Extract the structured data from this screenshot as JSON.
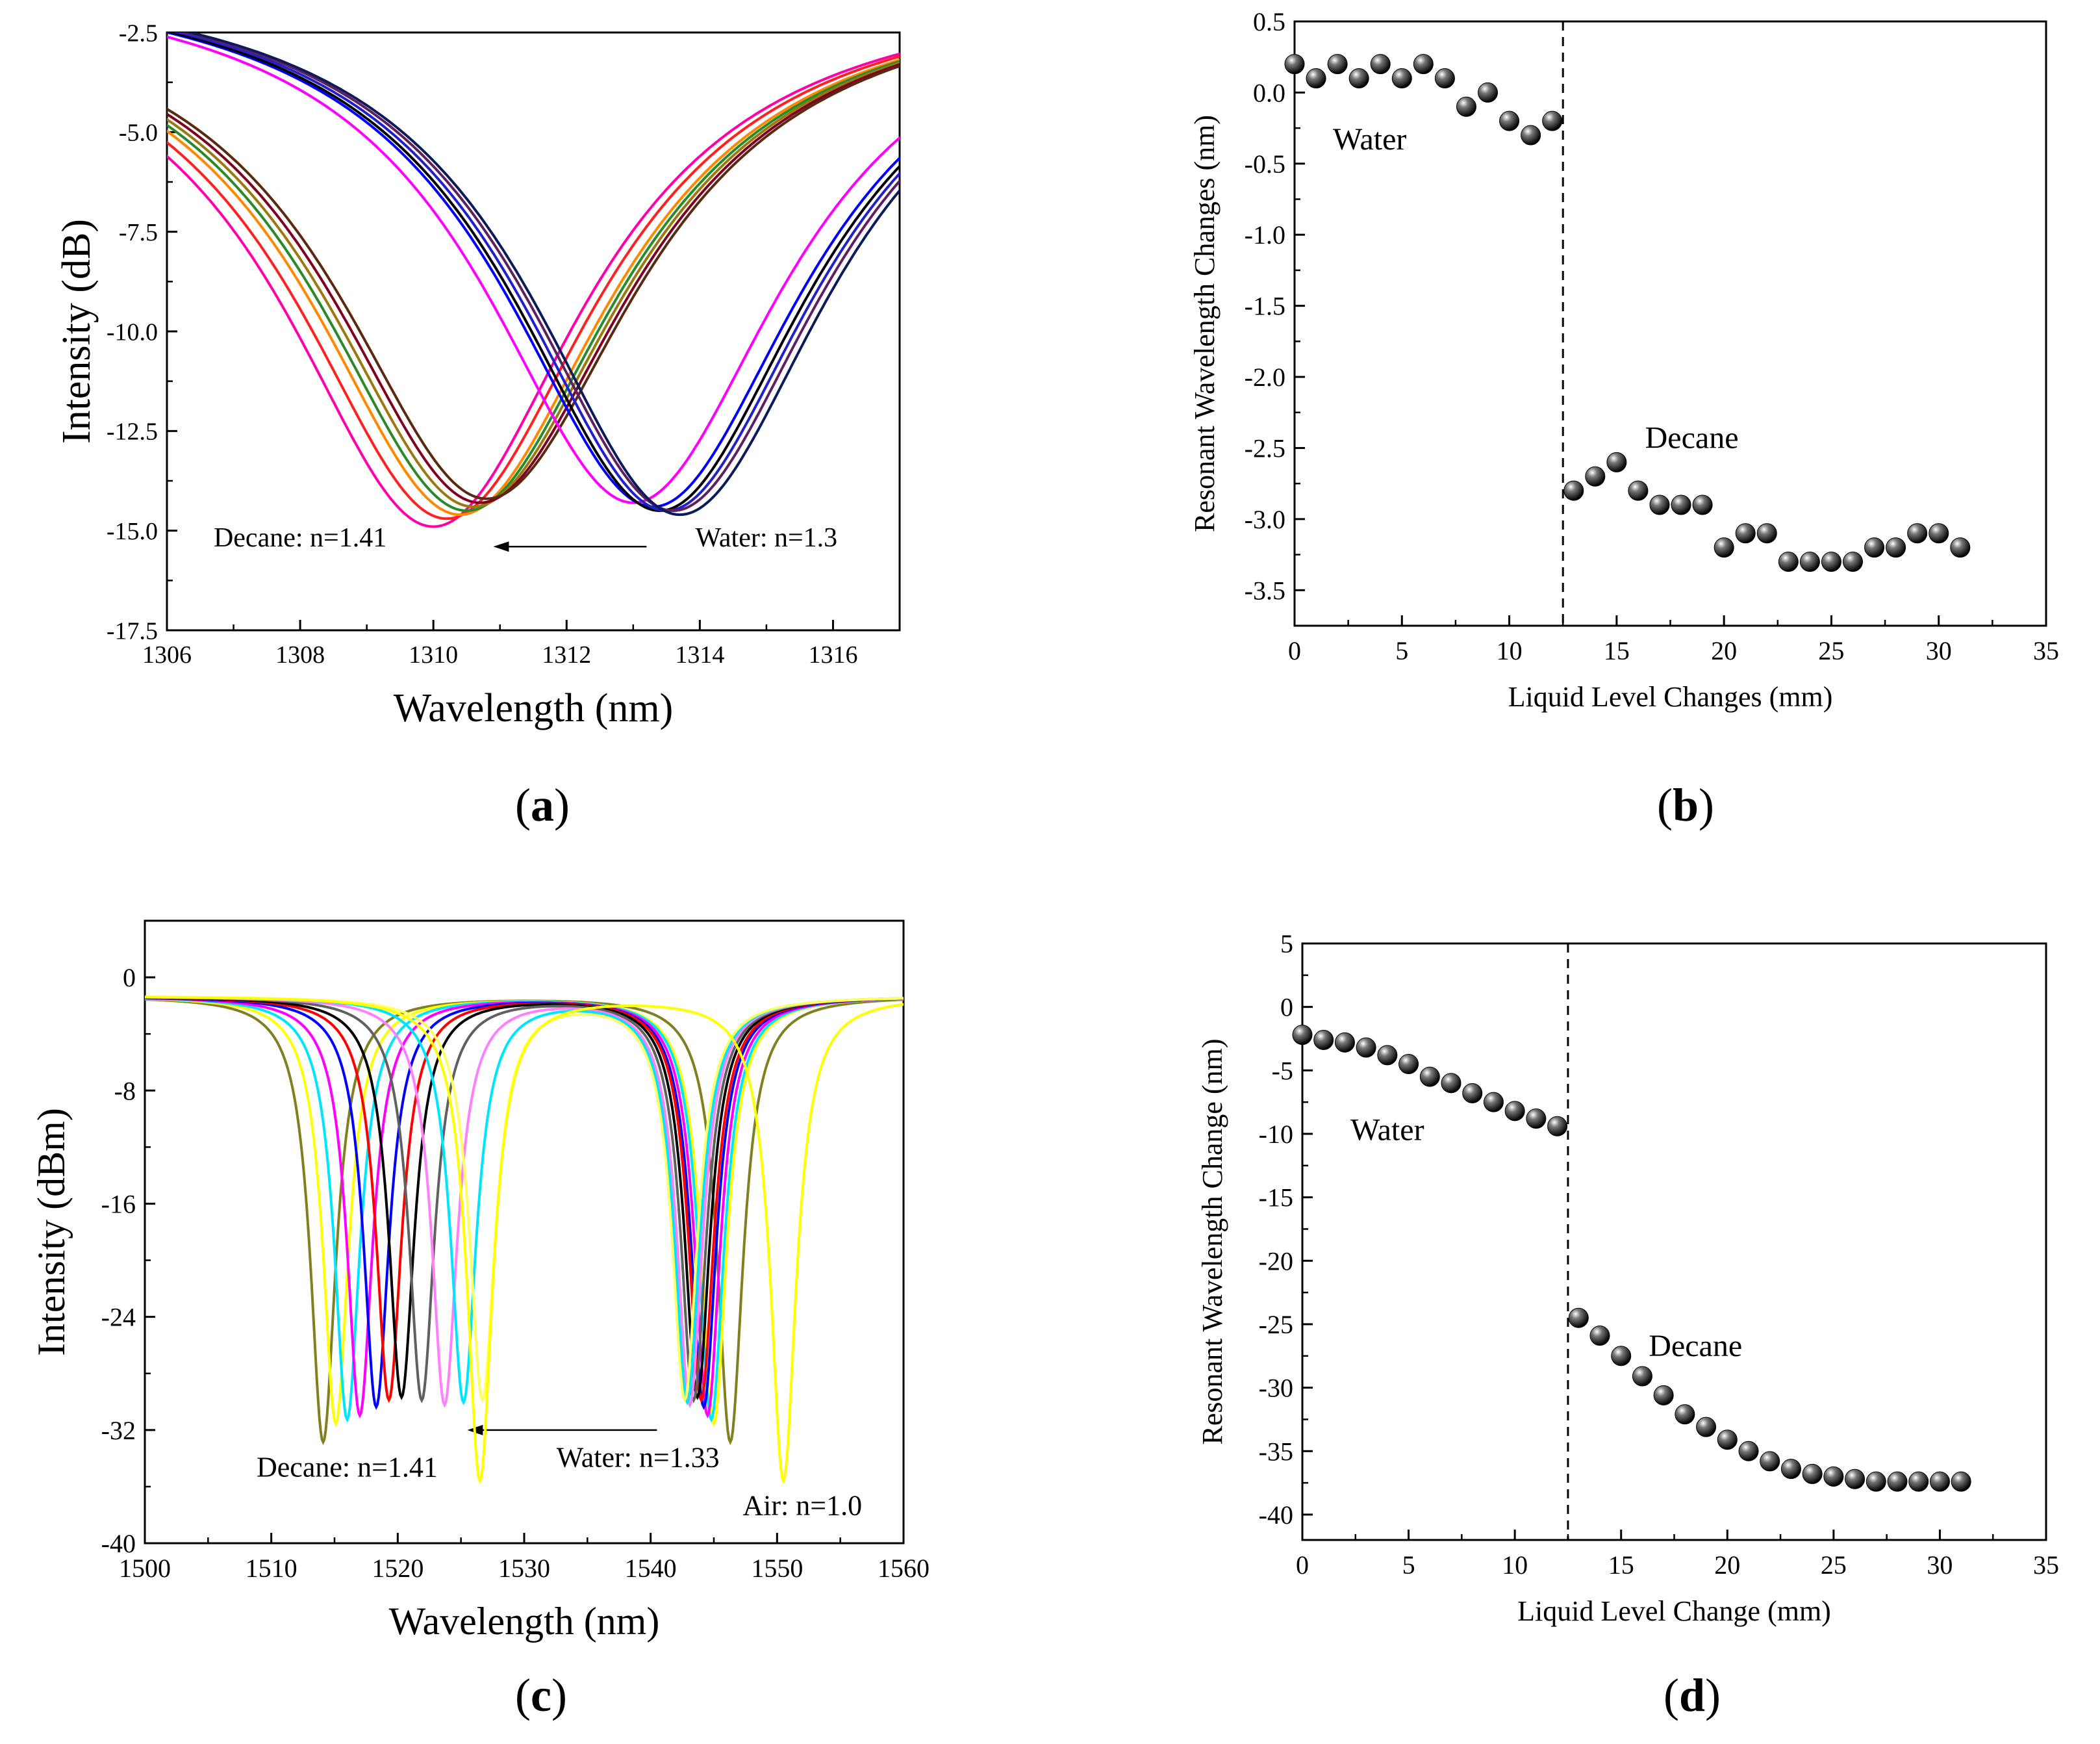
{
  "chart_data": [
    {
      "panel": "a",
      "type": "line",
      "xlabel": "Wavelength (nm)",
      "ylabel": "Intensity (dB)",
      "xlim": [
        1306,
        1317
      ],
      "ylim": [
        -17.5,
        -2.5
      ],
      "xticks": [
        1306,
        1308,
        1310,
        1312,
        1314,
        1316
      ],
      "yticks": [
        -2.5,
        -5.0,
        -7.5,
        -10.0,
        -12.5,
        -15.0,
        -17.5
      ],
      "annotations": [
        {
          "text": "Decane: n=1.41",
          "x": 1308.0,
          "y": -15.4
        },
        {
          "text": "Water: n=1.3",
          "x": 1315.0,
          "y": -15.4
        }
      ],
      "arrow": {
        "from": [
          1313.2,
          -15.4
        ],
        "to": [
          1310.9,
          -15.4
        ]
      },
      "curve_families": [
        {
          "group": "decane",
          "dip_center": [
            1310.0,
            1310.2,
            1310.4,
            1310.5,
            1310.6,
            1310.7,
            1310.8
          ],
          "dip_depth": [
            -14.9,
            -14.7,
            -14.6,
            -14.5,
            -14.4,
            -14.3,
            -14.2
          ],
          "left_start": -6.0,
          "right_end": -3.4,
          "colors": [
            "#ff00aa",
            "#ff2020",
            "#ff8800",
            "#2a8a2a",
            "#9a7a10",
            "#800020",
            "#5a2a10"
          ]
        },
        {
          "group": "water",
          "dip_center": [
            1313.0,
            1313.3,
            1313.4,
            1313.5,
            1313.6,
            1313.7
          ],
          "dip_depth": [
            -14.3,
            -14.4,
            -14.5,
            -14.5,
            -14.5,
            -14.6
          ],
          "left_start": -2.9,
          "right_end": -7.5,
          "colors": [
            "#ff00ff",
            "#0000ff",
            "#000000",
            "#2020cc",
            "#602060",
            "#0b1a5a"
          ]
        }
      ]
    },
    {
      "panel": "b",
      "type": "scatter",
      "xlabel": "Liquid Level Changes (mm)",
      "ylabel": "Resonant Wavelength Changes (nm)",
      "xlim": [
        0,
        35
      ],
      "ylim": [
        -3.75,
        0.5
      ],
      "xticks": [
        0,
        5,
        10,
        15,
        20,
        25,
        30,
        35
      ],
      "yticks": [
        0.5,
        0.0,
        -0.5,
        -1.0,
        -1.5,
        -2.0,
        -2.5,
        -3.0,
        -3.5
      ],
      "divider_x": 12.5,
      "annotations": [
        {
          "text": "Water",
          "x": 3.5,
          "y": -0.4
        },
        {
          "text": "Decane",
          "x": 18.5,
          "y": -2.5
        }
      ],
      "points": [
        [
          0,
          0.2
        ],
        [
          1,
          0.1
        ],
        [
          2,
          0.2
        ],
        [
          3,
          0.1
        ],
        [
          4,
          0.2
        ],
        [
          5,
          0.1
        ],
        [
          6,
          0.2
        ],
        [
          7,
          0.1
        ],
        [
          8,
          -0.1
        ],
        [
          9,
          0.0
        ],
        [
          10,
          -0.2
        ],
        [
          11,
          -0.3
        ],
        [
          12,
          -0.2
        ],
        [
          13,
          -2.8
        ],
        [
          14,
          -2.7
        ],
        [
          15,
          -2.6
        ],
        [
          16,
          -2.8
        ],
        [
          17,
          -2.9
        ],
        [
          18,
          -2.9
        ],
        [
          19,
          -2.9
        ],
        [
          20,
          -3.2
        ],
        [
          21,
          -3.1
        ],
        [
          22,
          -3.1
        ],
        [
          23,
          -3.3
        ],
        [
          24,
          -3.3
        ],
        [
          25,
          -3.3
        ],
        [
          26,
          -3.3
        ],
        [
          27,
          -3.2
        ],
        [
          28,
          -3.2
        ],
        [
          29,
          -3.1
        ],
        [
          30,
          -3.1
        ],
        [
          31,
          -3.2
        ]
      ]
    },
    {
      "panel": "c",
      "type": "line",
      "xlabel": "Wavelength (nm)",
      "ylabel": "Intensity (dBm)",
      "xlim": [
        1500,
        1560
      ],
      "ylim": [
        -40,
        4
      ],
      "xticks": [
        1500,
        1510,
        1520,
        1530,
        1540,
        1550,
        1560
      ],
      "yticks": [
        0,
        -8,
        -16,
        -24,
        -32,
        -40
      ],
      "annotations": [
        {
          "text": "Decane: n=1.41",
          "x": 1516.0,
          "y": -35.3
        },
        {
          "text": "Water: n=1.33",
          "x": 1539.0,
          "y": -34.6
        },
        {
          "text": "Air: n=1.0",
          "x": 1552.0,
          "y": -38.0
        }
      ],
      "arrow": {
        "from": [
          1540.5,
          -32.0
        ],
        "to": [
          1525.5,
          -32.0
        ]
      },
      "dip_pairs": [
        {
          "d1": 1514.1,
          "d2": 1546.3,
          "depth": -32.8,
          "color": "#808020"
        },
        {
          "d1": 1515.1,
          "d2": 1545.0,
          "depth": -31.5,
          "color": "#ffff00"
        },
        {
          "d1": 1516.0,
          "d2": 1544.8,
          "depth": -31.2,
          "color": "#00e5ff"
        },
        {
          "d1": 1517.0,
          "d2": 1544.5,
          "depth": -30.9,
          "color": "#ff00ff"
        },
        {
          "d1": 1518.3,
          "d2": 1544.2,
          "depth": -30.3,
          "color": "#0000ff"
        },
        {
          "d1": 1519.3,
          "d2": 1544.0,
          "depth": -29.8,
          "color": "#ff0000"
        },
        {
          "d1": 1520.3,
          "d2": 1543.7,
          "depth": -29.6,
          "color": "#000000"
        },
        {
          "d1": 1521.9,
          "d2": 1543.4,
          "depth": -29.8,
          "color": "#606060"
        },
        {
          "d1": 1523.7,
          "d2": 1543.1,
          "depth": -30.1,
          "color": "#ff80ff"
        },
        {
          "d1": 1525.2,
          "d2": 1542.9,
          "depth": -29.9,
          "color": "#00e5ff"
        },
        {
          "d1": 1526.7,
          "d2": 1542.7,
          "depth": -29.7,
          "color": "#ffff60"
        },
        {
          "d1": 1526.5,
          "d2": 1550.5,
          "depth": -35.5,
          "color": "#ffff00"
        }
      ]
    },
    {
      "panel": "d",
      "type": "scatter",
      "xlabel": "Liquid Level Change (mm)",
      "ylabel": "Resonant Wavelength Change (nm)",
      "xlim": [
        0,
        35
      ],
      "ylim": [
        -42,
        5
      ],
      "xticks": [
        0,
        5,
        10,
        15,
        20,
        25,
        30,
        35
      ],
      "yticks": [
        5,
        0,
        -5,
        -10,
        -15,
        -20,
        -25,
        -30,
        -35,
        -40
      ],
      "divider_x": 12.5,
      "annotations": [
        {
          "text": "Water",
          "x": 4.0,
          "y": -10.5
        },
        {
          "text": "Decane",
          "x": 18.5,
          "y": -27.5
        }
      ],
      "points": [
        [
          0,
          -2.2
        ],
        [
          1,
          -2.6
        ],
        [
          2,
          -2.8
        ],
        [
          3,
          -3.2
        ],
        [
          4,
          -3.8
        ],
        [
          5,
          -4.5
        ],
        [
          6,
          -5.5
        ],
        [
          7,
          -6.0
        ],
        [
          8,
          -6.8
        ],
        [
          9,
          -7.5
        ],
        [
          10,
          -8.2
        ],
        [
          11,
          -8.8
        ],
        [
          12,
          -9.4
        ],
        [
          13,
          -24.5
        ],
        [
          14,
          -25.9
        ],
        [
          15,
          -27.5
        ],
        [
          16,
          -29.1
        ],
        [
          17,
          -30.6
        ],
        [
          18,
          -32.1
        ],
        [
          19,
          -33.1
        ],
        [
          20,
          -34.1
        ],
        [
          21,
          -35.0
        ],
        [
          22,
          -35.8
        ],
        [
          23,
          -36.4
        ],
        [
          24,
          -36.8
        ],
        [
          25,
          -37.0
        ],
        [
          26,
          -37.2
        ],
        [
          27,
          -37.4
        ],
        [
          28,
          -37.4
        ],
        [
          29,
          -37.4
        ],
        [
          30,
          -37.4
        ],
        [
          31,
          -37.4
        ]
      ]
    }
  ],
  "panel_labels": {
    "a": "a",
    "b": "b",
    "c": "c",
    "d": "d"
  }
}
